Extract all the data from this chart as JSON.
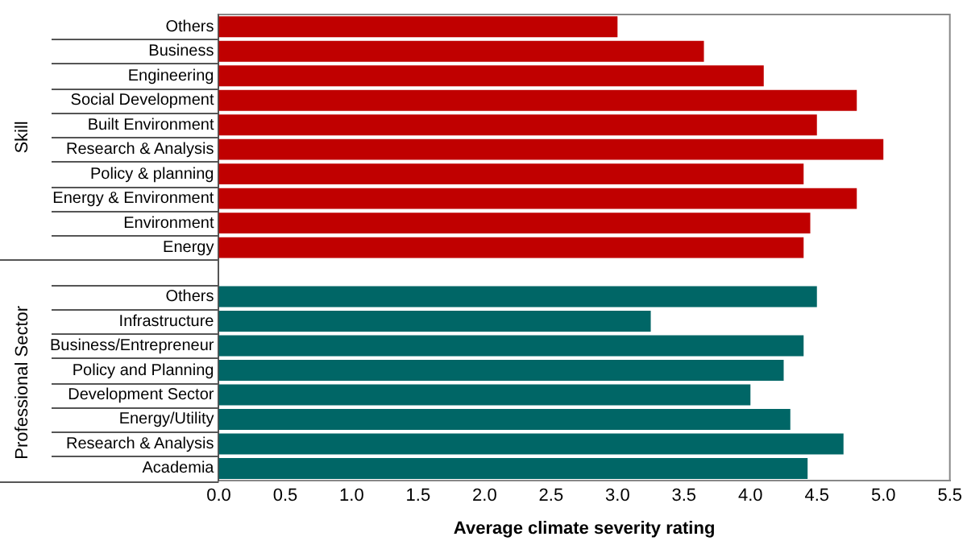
{
  "chart_data": {
    "type": "bar",
    "orientation": "horizontal",
    "xlabel": "Average climate severity rating",
    "categories": [
      "Others",
      "Business",
      "Engineering",
      "Social Development",
      "Built Environment",
      "Research & Analysis",
      "Policy & planning",
      "Energy & Environment",
      "Environment",
      "Energy",
      null,
      "Others",
      "Infrastructure",
      "Business/Entrepreneur",
      "Policy and Planning",
      "Development Sector",
      "Energy/Utility",
      "Research & Analysis",
      "Academia"
    ],
    "values": [
      3.0,
      3.65,
      4.1,
      4.8,
      4.5,
      5.0,
      4.4,
      4.8,
      4.45,
      4.4,
      null,
      4.5,
      3.25,
      4.4,
      4.25,
      4.0,
      4.3,
      4.7,
      4.43
    ],
    "colors": [
      "#c00000",
      "#c00000",
      "#c00000",
      "#c00000",
      "#c00000",
      "#c00000",
      "#c00000",
      "#c00000",
      "#c00000",
      "#c00000",
      null,
      "#006666",
      "#006666",
      "#006666",
      "#006666",
      "#006666",
      "#006666",
      "#006666",
      "#006666"
    ],
    "annotations": [
      "Skill",
      "Professional Sector"
    ],
    "xlim": [
      0,
      5.5
    ],
    "xticks": [
      {
        "value": 0,
        "label": "0.0"
      },
      0.5,
      {
        "value": 1,
        "label": "1.0"
      },
      1.5,
      {
        "value": 2,
        "label": "2.0"
      },
      2.5,
      {
        "value": 3,
        "label": "3.0"
      },
      3.5,
      {
        "value": 4,
        "label": "4.0"
      },
      4.5,
      {
        "value": 5,
        "label": "5.0"
      },
      5.5
    ],
    "grid": false,
    "legend": false
  }
}
